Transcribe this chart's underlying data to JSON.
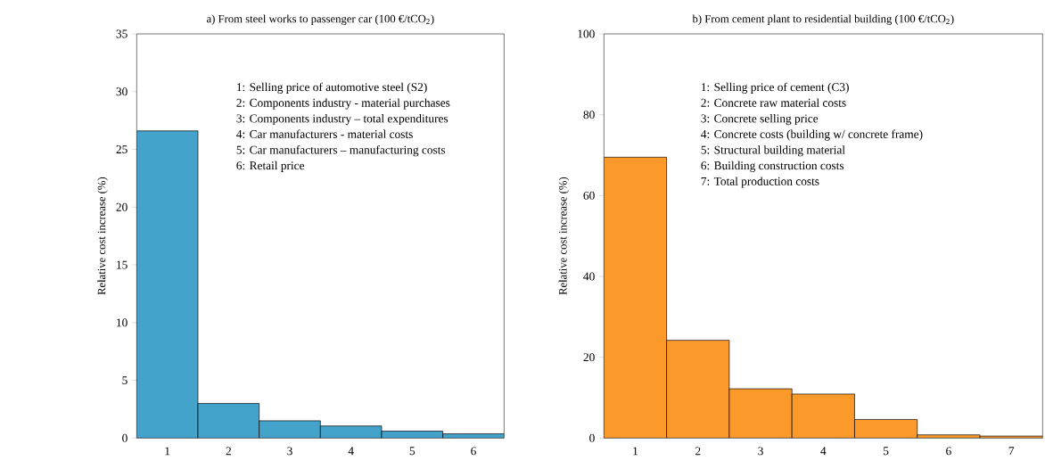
{
  "chart_data": [
    {
      "type": "bar",
      "title": "a) From steel works to passenger car (100 €/tCO$_{2}$)",
      "ylabel": "Relative cost increase (%)",
      "categories": [
        "1",
        "2",
        "3",
        "4",
        "5",
        "6"
      ],
      "values": [
        26.6,
        3.0,
        1.5,
        1.05,
        0.6,
        0.37
      ],
      "color": "#43a3cb",
      "ylim": [
        0,
        35
      ],
      "yticks": [
        0,
        5,
        10,
        15,
        20,
        25,
        30,
        35
      ],
      "annotations": [
        "1: Selling price of automotive steel (S2)",
        "2: Components industry - material purchases",
        "3: Components industry – total expenditures",
        "4: Car manufacturers - material costs",
        "5: Car manufacturers – manufacturing costs",
        "6: Retail price"
      ]
    },
    {
      "type": "bar",
      "title": "b) From cement plant to residential building (100 €/tCO$_{2}$)",
      "ylabel": "Relative cost increase (%)",
      "categories": [
        "1",
        "2",
        "3",
        "4",
        "5",
        "6",
        "7"
      ],
      "values": [
        69.5,
        24.2,
        12.2,
        10.9,
        4.6,
        0.8,
        0.5
      ],
      "color": "#fb9a2b",
      "ylim": [
        0,
        100
      ],
      "yticks": [
        0,
        20,
        40,
        60,
        80,
        100
      ],
      "annotations": [
        "1: Selling price of cement (C3)",
        "2: Concrete raw material costs",
        "3: Concrete selling price",
        "4: Concrete costs (building w/ concrete frame)",
        "5: Structural building material",
        "6: Building construction costs",
        "7: Total production costs"
      ]
    }
  ]
}
